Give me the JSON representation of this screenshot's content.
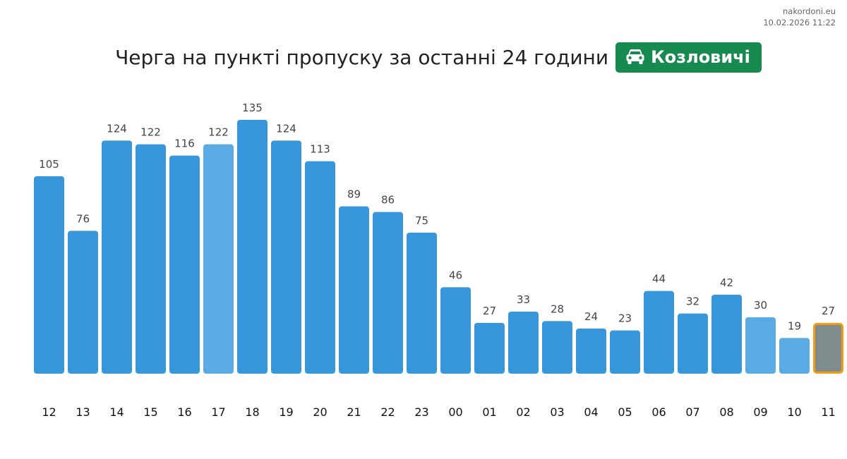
{
  "site": {
    "name": "nakordoni.eu",
    "timestamp": "10.02.2026 11:22"
  },
  "header": {
    "title": "Черга на пункті пропуску за останні 24 години",
    "checkpoint": "Козловичі",
    "checkpoint_icon": "car-icon"
  },
  "colors": {
    "bar": "#3897db",
    "bar_light": "#5aaae3",
    "current": "#7f8c8d",
    "current_border": "#f39c12",
    "badge": "#178a4f"
  },
  "chart_data": {
    "type": "bar",
    "title": "Черга на пункті пропуску за останні 24 години",
    "categories": [
      "12",
      "13",
      "14",
      "15",
      "16",
      "17",
      "18",
      "19",
      "20",
      "21",
      "22",
      "23",
      "00",
      "01",
      "02",
      "03",
      "04",
      "05",
      "06",
      "07",
      "08",
      "09",
      "10",
      "11"
    ],
    "values": [
      105,
      76,
      124,
      122,
      116,
      122,
      135,
      124,
      113,
      89,
      86,
      75,
      46,
      27,
      33,
      28,
      24,
      23,
      44,
      32,
      42,
      30,
      19,
      27
    ],
    "bar_styles": [
      "normal",
      "normal",
      "normal",
      "normal",
      "normal",
      "light",
      "normal",
      "normal",
      "normal",
      "normal",
      "normal",
      "normal",
      "normal",
      "normal",
      "normal",
      "normal",
      "normal",
      "normal",
      "normal",
      "normal",
      "normal",
      "light",
      "light",
      "current"
    ],
    "data_labels": true,
    "grid": false,
    "ylim": [
      0,
      135
    ]
  }
}
